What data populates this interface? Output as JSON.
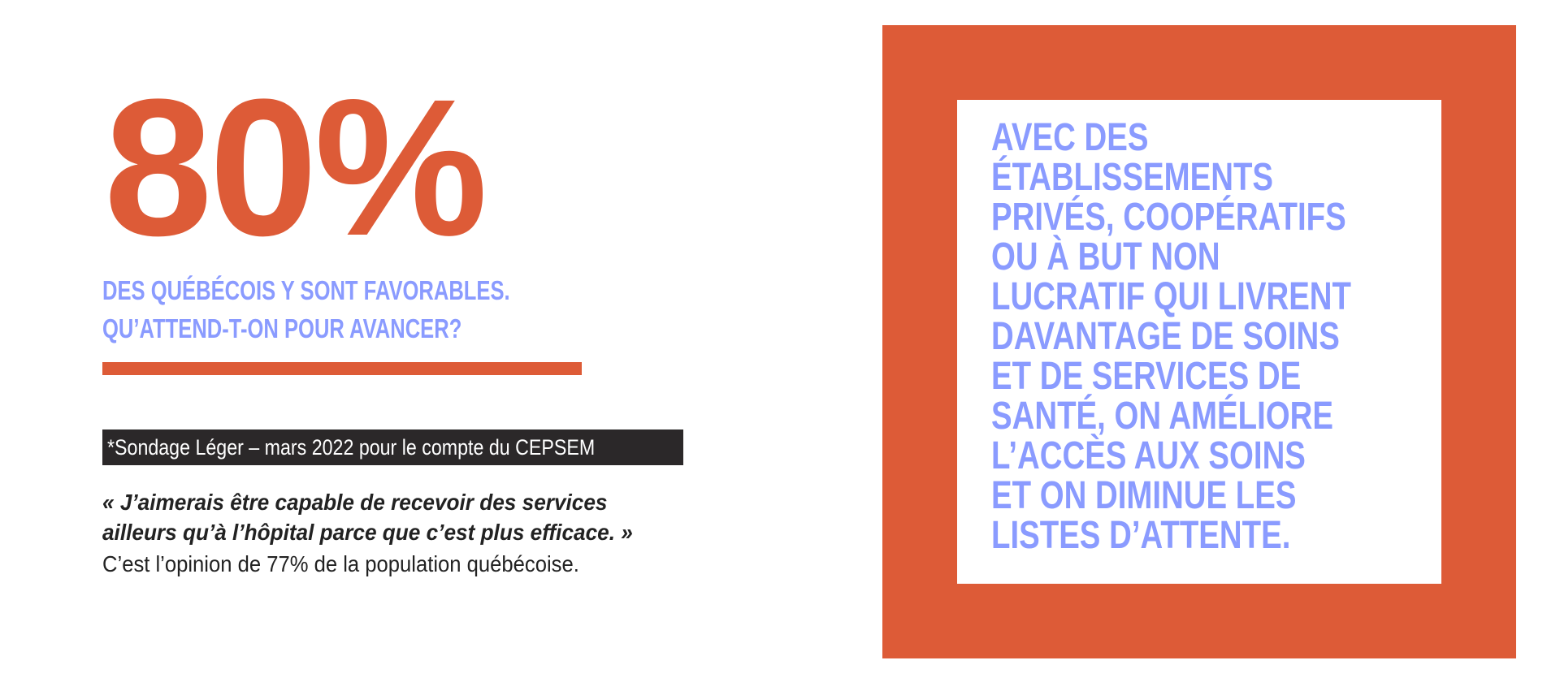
{
  "colors": {
    "accent_orange": "#dd5b37",
    "accent_blue": "#8a9bff",
    "dark_tag_bg": "#2b2829",
    "body_text": "#222222",
    "background": "#ffffff"
  },
  "stat": {
    "value": "80%"
  },
  "subtitle": {
    "lines": [
      "DES QUÉBÉCOIS Y SONT FAVORABLES.",
      "QU’ATTEND-T-ON POUR AVANCER?"
    ]
  },
  "source": {
    "label": "*Sondage Léger – mars 2022 pour le compte du CEPSEM"
  },
  "quote": {
    "lines": [
      "« J’aimerais être capable de recevoir des services",
      "ailleurs qu’à l’hôpital parce que c’est plus efficace. »"
    ]
  },
  "opinion": {
    "text": "C’est l’opinion de 77% de la population québécoise."
  },
  "panel": {
    "lines": [
      "AVEC DES",
      "ÉTABLISSEMENTS",
      "PRIVÉS, COOPÉRATIFS",
      "OU À BUT NON",
      "LUCRATIF QUI LIVRENT",
      "DAVANTAGE DE SOINS",
      "ET DE SERVICES DE",
      "SANTÉ, ON AMÉLIORE",
      "L’ACCÈS AUX SOINS",
      "ET ON DIMINUE LES",
      "LISTES D’ATTENTE."
    ]
  }
}
